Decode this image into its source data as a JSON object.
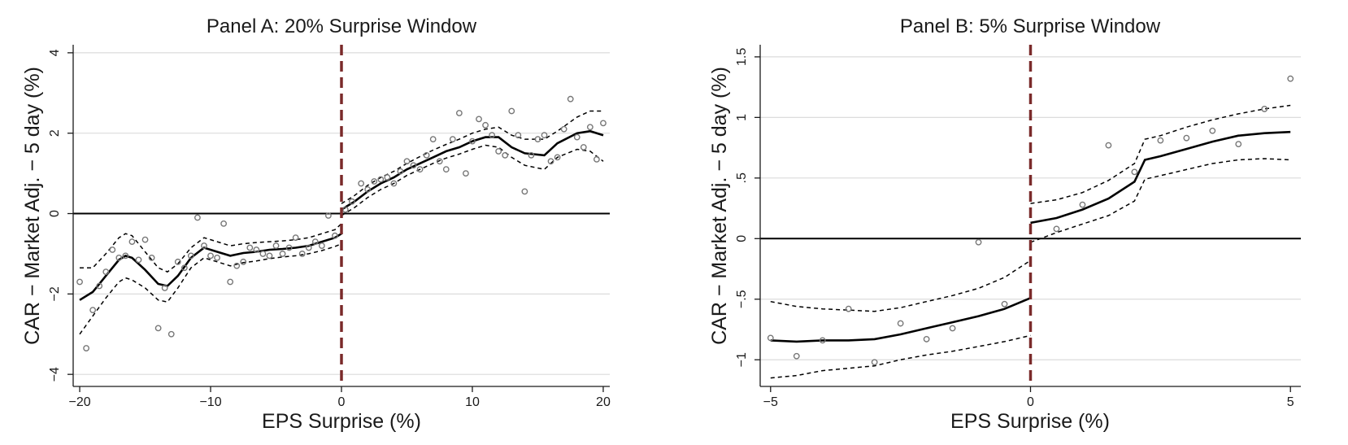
{
  "chart_data": [
    {
      "type": "scatter",
      "title": "Panel A: 20% Surprise Window",
      "xlabel": "EPS Surprise (%)",
      "ylabel": "CAR − Market Adj. − 5 day (%)",
      "xlim": [
        -20.5,
        20.5
      ],
      "ylim": [
        -4.3,
        4.2
      ],
      "xticks": [
        -20,
        -10,
        0,
        10,
        20
      ],
      "xtick_labels": [
        "−20",
        "−10",
        "0",
        "10",
        "20"
      ],
      "yticks": [
        -4,
        -2,
        0,
        2,
        4
      ],
      "ytick_labels": [
        "−4",
        "−2",
        "0",
        "2",
        "4"
      ],
      "grid": true,
      "reference_lines": {
        "horizontal_zero": true,
        "vertical_cutoff_x": 0
      },
      "colors": {
        "cutoff": "#7a2a2a",
        "points": "#777777",
        "fit": "#000000"
      },
      "points": [
        [
          -20,
          -1.7
        ],
        [
          -19.5,
          -3.35
        ],
        [
          -19,
          -2.4
        ],
        [
          -18.5,
          -1.8
        ],
        [
          -18,
          -1.45
        ],
        [
          -17.5,
          -0.9
        ],
        [
          -17,
          -1.1
        ],
        [
          -16.5,
          -1.05
        ],
        [
          -16,
          -0.7
        ],
        [
          -15.5,
          -1.15
        ],
        [
          -15,
          -0.65
        ],
        [
          -14.5,
          -1.1
        ],
        [
          -14,
          -2.85
        ],
        [
          -13.5,
          -1.85
        ],
        [
          -13,
          -3.0
        ],
        [
          -12.5,
          -1.2
        ],
        [
          -12,
          -1.35
        ],
        [
          -11.5,
          -1.05
        ],
        [
          -11,
          -0.1
        ],
        [
          -10.5,
          -0.8
        ],
        [
          -10,
          -1.05
        ],
        [
          -9.5,
          -1.1
        ],
        [
          -9,
          -0.25
        ],
        [
          -8.5,
          -1.7
        ],
        [
          -8,
          -1.3
        ],
        [
          -7.5,
          -1.2
        ],
        [
          -7,
          -0.85
        ],
        [
          -6.5,
          -0.9
        ],
        [
          -6,
          -1.0
        ],
        [
          -5.5,
          -1.05
        ],
        [
          -5,
          -0.8
        ],
        [
          -4.5,
          -1.0
        ],
        [
          -4,
          -0.85
        ],
        [
          -3.5,
          -0.6
        ],
        [
          -3,
          -1.0
        ],
        [
          -2.5,
          -0.85
        ],
        [
          -2,
          -0.7
        ],
        [
          -1.5,
          -0.8
        ],
        [
          -1,
          -0.05
        ],
        [
          -0.5,
          -0.55
        ],
        [
          0.3,
          0.1
        ],
        [
          0.8,
          0.3
        ],
        [
          1.5,
          0.75
        ],
        [
          2,
          0.6
        ],
        [
          2.5,
          0.8
        ],
        [
          3,
          0.85
        ],
        [
          3.5,
          0.9
        ],
        [
          4,
          0.75
        ],
        [
          4.5,
          1.05
        ],
        [
          5,
          1.3
        ],
        [
          5.5,
          1.2
        ],
        [
          6,
          1.1
        ],
        [
          6.5,
          1.45
        ],
        [
          7,
          1.85
        ],
        [
          7.5,
          1.3
        ],
        [
          8,
          1.1
        ],
        [
          8.5,
          1.85
        ],
        [
          9,
          2.5
        ],
        [
          9.5,
          1.0
        ],
        [
          10,
          1.8
        ],
        [
          10.5,
          2.35
        ],
        [
          11,
          2.2
        ],
        [
          11.5,
          1.95
        ],
        [
          12,
          1.55
        ],
        [
          12.5,
          1.45
        ],
        [
          13,
          2.55
        ],
        [
          13.5,
          1.95
        ],
        [
          14,
          0.55
        ],
        [
          14.5,
          1.45
        ],
        [
          15,
          1.85
        ],
        [
          15.5,
          1.95
        ],
        [
          16,
          1.3
        ],
        [
          16.5,
          1.4
        ],
        [
          17,
          2.1
        ],
        [
          17.5,
          2.85
        ],
        [
          18,
          1.9
        ],
        [
          18.5,
          1.65
        ],
        [
          19,
          2.15
        ],
        [
          19.5,
          1.35
        ],
        [
          20,
          2.25
        ]
      ],
      "fit_left": [
        [
          -20,
          -2.15
        ],
        [
          -19,
          -1.95
        ],
        [
          -18,
          -1.55
        ],
        [
          -17,
          -1.15
        ],
        [
          -16.5,
          -1.05
        ],
        [
          -16,
          -1.1
        ],
        [
          -15,
          -1.4
        ],
        [
          -14,
          -1.75
        ],
        [
          -13.3,
          -1.8
        ],
        [
          -12.5,
          -1.55
        ],
        [
          -11.5,
          -1.1
        ],
        [
          -10.5,
          -0.85
        ],
        [
          -9.5,
          -0.95
        ],
        [
          -8.5,
          -1.05
        ],
        [
          -7.5,
          -0.98
        ],
        [
          -6.5,
          -0.95
        ],
        [
          -5.5,
          -0.9
        ],
        [
          -4.5,
          -0.88
        ],
        [
          -3.5,
          -0.85
        ],
        [
          -2.5,
          -0.8
        ],
        [
          -1.5,
          -0.7
        ],
        [
          -0.5,
          -0.6
        ],
        [
          0,
          -0.5
        ]
      ],
      "ci_upper_left": [
        [
          -20,
          -1.35
        ],
        [
          -19,
          -1.35
        ],
        [
          -18,
          -1.0
        ],
        [
          -17,
          -0.6
        ],
        [
          -16.5,
          -0.5
        ],
        [
          -16,
          -0.55
        ],
        [
          -15,
          -0.95
        ],
        [
          -14,
          -1.35
        ],
        [
          -13.3,
          -1.45
        ],
        [
          -12.5,
          -1.25
        ],
        [
          -11.5,
          -0.85
        ],
        [
          -10.5,
          -0.6
        ],
        [
          -9.5,
          -0.7
        ],
        [
          -8.5,
          -0.8
        ],
        [
          -7.5,
          -0.75
        ],
        [
          -6.5,
          -0.72
        ],
        [
          -5.5,
          -0.7
        ],
        [
          -4.5,
          -0.68
        ],
        [
          -3.5,
          -0.65
        ],
        [
          -2.5,
          -0.6
        ],
        [
          -1.5,
          -0.5
        ],
        [
          -0.5,
          -0.4
        ],
        [
          0,
          -0.25
        ]
      ],
      "ci_lower_left": [
        [
          -20,
          -3.0
        ],
        [
          -19,
          -2.55
        ],
        [
          -18,
          -2.1
        ],
        [
          -17,
          -1.7
        ],
        [
          -16.5,
          -1.6
        ],
        [
          -16,
          -1.65
        ],
        [
          -15,
          -1.85
        ],
        [
          -14,
          -2.15
        ],
        [
          -13.3,
          -2.2
        ],
        [
          -12.5,
          -1.85
        ],
        [
          -11.5,
          -1.35
        ],
        [
          -10.5,
          -1.1
        ],
        [
          -9.5,
          -1.2
        ],
        [
          -8.5,
          -1.3
        ],
        [
          -7.5,
          -1.22
        ],
        [
          -6.5,
          -1.18
        ],
        [
          -5.5,
          -1.12
        ],
        [
          -4.5,
          -1.08
        ],
        [
          -3.5,
          -1.05
        ],
        [
          -2.5,
          -1.0
        ],
        [
          -1.5,
          -0.92
        ],
        [
          -0.5,
          -0.82
        ],
        [
          0,
          -0.75
        ]
      ],
      "fit_right": [
        [
          0,
          0.1
        ],
        [
          1,
          0.3
        ],
        [
          2,
          0.55
        ],
        [
          3,
          0.75
        ],
        [
          4,
          0.9
        ],
        [
          5,
          1.1
        ],
        [
          6,
          1.25
        ],
        [
          7,
          1.4
        ],
        [
          8,
          1.55
        ],
        [
          9,
          1.65
        ],
        [
          10,
          1.8
        ],
        [
          11,
          1.9
        ],
        [
          12,
          1.9
        ],
        [
          13,
          1.65
        ],
        [
          14,
          1.5
        ],
        [
          15.5,
          1.45
        ],
        [
          16.5,
          1.75
        ],
        [
          18,
          2.0
        ],
        [
          19,
          2.05
        ],
        [
          20,
          1.95
        ]
      ],
      "ci_upper_right": [
        [
          0,
          0.25
        ],
        [
          1,
          0.45
        ],
        [
          2,
          0.7
        ],
        [
          3,
          0.9
        ],
        [
          4,
          1.05
        ],
        [
          5,
          1.25
        ],
        [
          6,
          1.42
        ],
        [
          7,
          1.58
        ],
        [
          8,
          1.72
        ],
        [
          9,
          1.85
        ],
        [
          10,
          2.0
        ],
        [
          11,
          2.1
        ],
        [
          12,
          2.15
        ],
        [
          13,
          1.95
        ],
        [
          14,
          1.85
        ],
        [
          15.5,
          1.85
        ],
        [
          16.5,
          2.05
        ],
        [
          18,
          2.4
        ],
        [
          19,
          2.55
        ],
        [
          20,
          2.55
        ]
      ],
      "ci_lower_right": [
        [
          0,
          -0.05
        ],
        [
          1,
          0.15
        ],
        [
          2,
          0.4
        ],
        [
          3,
          0.6
        ],
        [
          4,
          0.75
        ],
        [
          5,
          0.95
        ],
        [
          6,
          1.1
        ],
        [
          7,
          1.25
        ],
        [
          8,
          1.38
        ],
        [
          9,
          1.48
        ],
        [
          10,
          1.6
        ],
        [
          11,
          1.7
        ],
        [
          12,
          1.65
        ],
        [
          13,
          1.4
        ],
        [
          14,
          1.2
        ],
        [
          15.5,
          1.1
        ],
        [
          16.5,
          1.4
        ],
        [
          18,
          1.6
        ],
        [
          19,
          1.55
        ],
        [
          20,
          1.3
        ]
      ]
    },
    {
      "type": "scatter",
      "title": "Panel B: 5% Surprise Window",
      "xlabel": "EPS Surprise (%)",
      "ylabel": "CAR − Market Adj. − 5 day (%)",
      "xlim": [
        -5.2,
        5.2
      ],
      "ylim": [
        -1.22,
        1.6
      ],
      "xticks": [
        -5,
        0,
        5
      ],
      "xtick_labels": [
        "−5",
        "0",
        "5"
      ],
      "yticks": [
        -1,
        -0.5,
        0,
        0.5,
        1,
        1.5
      ],
      "ytick_labels": [
        "−1",
        "−.5",
        "0",
        ".5",
        "1",
        "1.5"
      ],
      "grid": true,
      "reference_lines": {
        "horizontal_zero": true,
        "vertical_cutoff_x": 0
      },
      "colors": {
        "cutoff": "#7a2a2a",
        "points": "#777777",
        "fit": "#000000"
      },
      "points": [
        [
          -5,
          -0.82
        ],
        [
          -4.5,
          -0.97
        ],
        [
          -4,
          -0.84
        ],
        [
          -3.5,
          -0.58
        ],
        [
          -3,
          -1.02
        ],
        [
          -2.5,
          -0.7
        ],
        [
          -2,
          -0.83
        ],
        [
          -1.5,
          -0.74
        ],
        [
          -1,
          -0.03
        ],
        [
          -0.5,
          -0.54
        ],
        [
          0.5,
          0.08
        ],
        [
          1,
          0.28
        ],
        [
          1.5,
          0.77
        ],
        [
          2,
          0.55
        ],
        [
          2.5,
          0.81
        ],
        [
          3,
          0.83
        ],
        [
          3.5,
          0.89
        ],
        [
          4,
          0.78
        ],
        [
          4.5,
          1.07
        ],
        [
          5,
          1.32
        ]
      ],
      "fit_left": [
        [
          -5,
          -0.84
        ],
        [
          -4.5,
          -0.85
        ],
        [
          -4,
          -0.84
        ],
        [
          -3.5,
          -0.84
        ],
        [
          -3,
          -0.83
        ],
        [
          -2.5,
          -0.79
        ],
        [
          -2,
          -0.74
        ],
        [
          -1.5,
          -0.69
        ],
        [
          -1,
          -0.64
        ],
        [
          -0.5,
          -0.58
        ],
        [
          0,
          -0.49
        ]
      ],
      "ci_upper_left": [
        [
          -5,
          -0.52
        ],
        [
          -4.5,
          -0.56
        ],
        [
          -4,
          -0.58
        ],
        [
          -3.5,
          -0.59
        ],
        [
          -3,
          -0.6
        ],
        [
          -2.5,
          -0.57
        ],
        [
          -2,
          -0.52
        ],
        [
          -1.5,
          -0.47
        ],
        [
          -1,
          -0.41
        ],
        [
          -0.5,
          -0.32
        ],
        [
          0,
          -0.18
        ]
      ],
      "ci_lower_left": [
        [
          -5,
          -1.15
        ],
        [
          -4.5,
          -1.13
        ],
        [
          -4,
          -1.09
        ],
        [
          -3.5,
          -1.07
        ],
        [
          -3,
          -1.05
        ],
        [
          -2.5,
          -1.0
        ],
        [
          -2,
          -0.96
        ],
        [
          -1.5,
          -0.93
        ],
        [
          -1,
          -0.89
        ],
        [
          -0.5,
          -0.85
        ],
        [
          0,
          -0.8
        ]
      ],
      "fit_right": [
        [
          0,
          0.13
        ],
        [
          0.5,
          0.17
        ],
        [
          1,
          0.24
        ],
        [
          1.5,
          0.33
        ],
        [
          2,
          0.47
        ],
        [
          2.2,
          0.65
        ],
        [
          2.5,
          0.68
        ],
        [
          3,
          0.74
        ],
        [
          3.5,
          0.8
        ],
        [
          4,
          0.85
        ],
        [
          4.5,
          0.87
        ],
        [
          5,
          0.88
        ]
      ],
      "ci_upper_right": [
        [
          0,
          0.29
        ],
        [
          0.5,
          0.32
        ],
        [
          1,
          0.38
        ],
        [
          1.5,
          0.48
        ],
        [
          2,
          0.62
        ],
        [
          2.2,
          0.82
        ],
        [
          2.5,
          0.85
        ],
        [
          3,
          0.92
        ],
        [
          3.5,
          0.98
        ],
        [
          4,
          1.03
        ],
        [
          4.5,
          1.07
        ],
        [
          5,
          1.1
        ]
      ],
      "ci_lower_right": [
        [
          0,
          -0.03
        ],
        [
          0.5,
          0.05
        ],
        [
          1,
          0.12
        ],
        [
          1.5,
          0.19
        ],
        [
          2,
          0.31
        ],
        [
          2.2,
          0.49
        ],
        [
          2.5,
          0.52
        ],
        [
          3,
          0.57
        ],
        [
          3.5,
          0.62
        ],
        [
          4,
          0.65
        ],
        [
          4.5,
          0.66
        ],
        [
          5,
          0.65
        ]
      ]
    }
  ]
}
